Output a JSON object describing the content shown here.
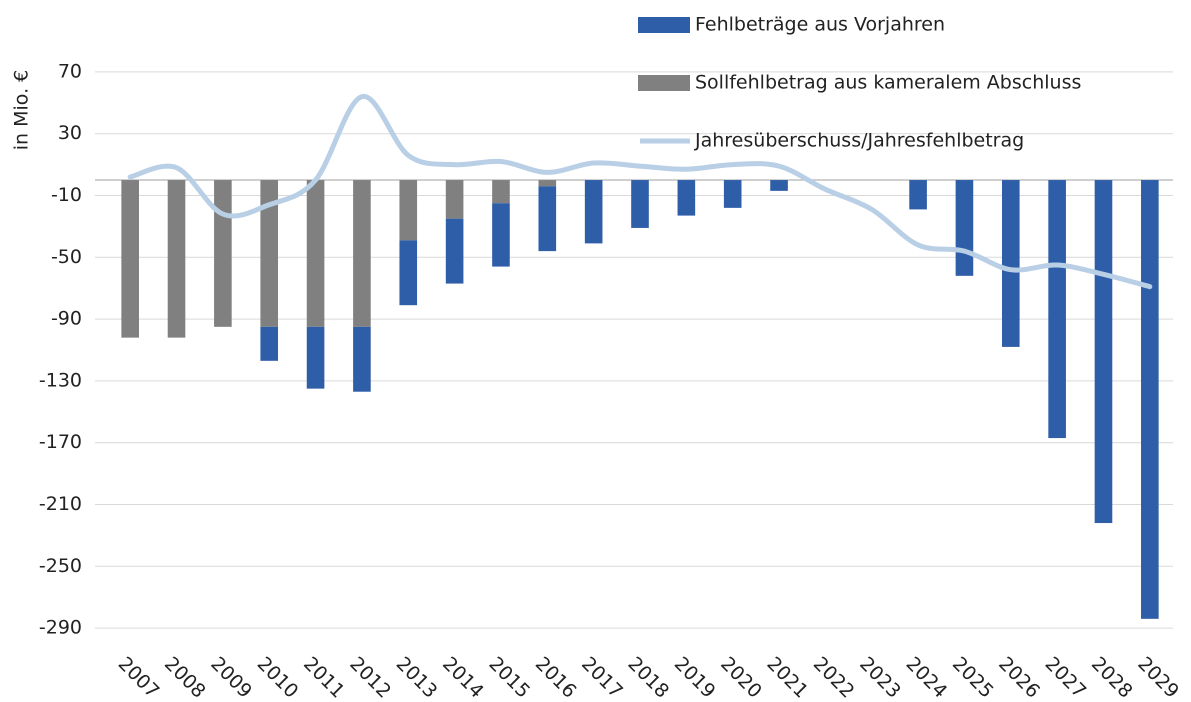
{
  "chart_data": {
    "type": "bar",
    "y_label": "in Mio. €",
    "categories": [
      "2007",
      "2008",
      "2009",
      "2010",
      "2011",
      "2012",
      "2013",
      "2014",
      "2015",
      "2016",
      "2017",
      "2018",
      "2019",
      "2020",
      "2021",
      "2022",
      "2023",
      "2024",
      "2025",
      "2026",
      "2027",
      "2028",
      "2029"
    ],
    "series": [
      {
        "name": "Fehlbeträge aus Vorjahren",
        "color": "#2f5ea8",
        "values": [
          0,
          0,
          0,
          -22,
          -40,
          -42,
          -42,
          -42,
          -41,
          -42,
          -41,
          -31,
          -23,
          -18,
          -7,
          0,
          0,
          -19,
          -62,
          -108,
          -167,
          -222,
          -284
        ]
      },
      {
        "name": "Sollfehlbetrag aus kameralem Abschluss",
        "color": "#808080",
        "values": [
          -102,
          -102,
          -95,
          -95,
          -95,
          -95,
          -39,
          -25,
          -15,
          -4,
          0,
          0,
          0,
          0,
          0,
          0,
          0,
          0,
          0,
          0,
          0,
          0,
          0
        ]
      },
      {
        "name": "Jahresüberschuss/Jahresfehlbetrag",
        "type": "line",
        "color": "#b8cfe6",
        "values": [
          2,
          8,
          -22,
          -16,
          0,
          54,
          16,
          10,
          12,
          5,
          11,
          9,
          7,
          10,
          9,
          -6,
          -19,
          -42,
          -46,
          -58,
          -55,
          -61,
          -69
        ]
      }
    ],
    "stacked": true,
    "ylim": [
      -310,
      90
    ],
    "yticks": [
      70,
      30,
      -10,
      -50,
      -90,
      -130,
      -170,
      -210,
      -250,
      -290
    ],
    "grid": true,
    "legend": "top-right"
  }
}
